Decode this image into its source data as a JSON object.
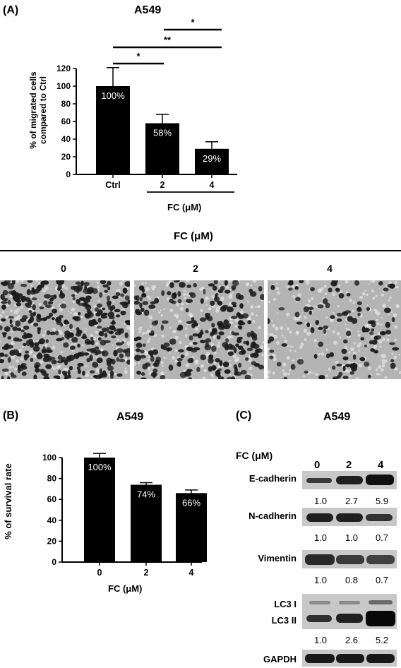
{
  "panel_a": {
    "label": "(A)",
    "title": "A549",
    "ylabel_line1": "% of migrated cells",
    "ylabel_line2": "compared to Ctrl",
    "group_label": "FC (μM)",
    "image_section_title": "FC (μM)",
    "image_labels": [
      "0",
      "2",
      "4"
    ],
    "significance": [
      "*",
      "**",
      "*"
    ]
  },
  "panel_b": {
    "label": "(B)",
    "title": "A549",
    "ylabel": "% of survival rate",
    "xlabel": "FC (μM)"
  },
  "panel_c": {
    "label": "(C)",
    "title": "A549",
    "fc_label": "FC (μM)",
    "lanes": [
      "0",
      "2",
      "4"
    ],
    "rows": [
      {
        "label": "E-cadherin",
        "quant": [
          "1.0",
          "2.7",
          "5.9"
        ]
      },
      {
        "label": "N-cadherin",
        "quant": [
          "1.0",
          "1.0",
          "0.7"
        ]
      },
      {
        "label": "Vimentin",
        "quant": [
          "1.0",
          "0.8",
          "0.7"
        ]
      },
      {
        "label": "LC3 I",
        "quant": []
      },
      {
        "label": "LC3 II",
        "quant": [
          "1.0",
          "2.6",
          "5.2"
        ]
      },
      {
        "label": "GAPDH",
        "quant": []
      }
    ]
  },
  "chart_data": [
    {
      "type": "bar",
      "title": "A549",
      "categories": [
        "Ctrl",
        "2",
        "4"
      ],
      "values": [
        100,
        58,
        29
      ],
      "errors": [
        21,
        10,
        8
      ],
      "data_labels": [
        "100%",
        "58%",
        "29%"
      ],
      "ylabel": "% of migrated cells compared to Ctrl",
      "xlabel": "FC (μM)",
      "ylim": [
        0,
        120
      ],
      "yticks": [
        0,
        20,
        40,
        60,
        80,
        100,
        120
      ]
    },
    {
      "type": "bar",
      "title": "A549",
      "categories": [
        "0",
        "2",
        "4"
      ],
      "values": [
        100,
        74,
        66
      ],
      "errors": [
        4,
        2,
        3
      ],
      "data_labels": [
        "100%",
        "74%",
        "66%"
      ],
      "ylabel": "% of survival rate",
      "xlabel": "FC (μM)",
      "ylim": [
        0,
        100
      ],
      "yticks": [
        0,
        20,
        40,
        60,
        80,
        100
      ]
    }
  ]
}
